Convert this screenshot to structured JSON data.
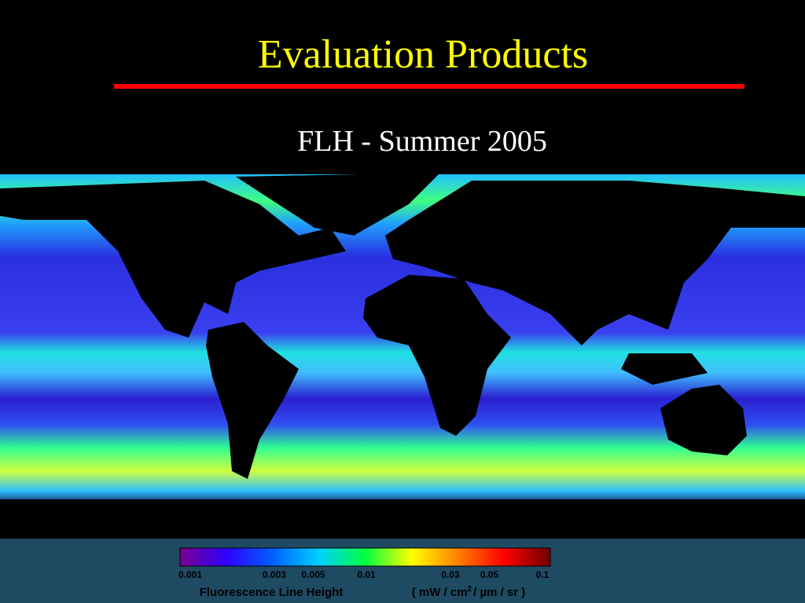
{
  "slide": {
    "title": "Evaluation Products",
    "subtitle": "FLH - Summer 2005",
    "colorbar": {
      "scale": "log",
      "lim": [
        0.001,
        0.1
      ],
      "ticks": [
        0.001,
        0.003,
        0.005,
        0.01,
        0.03,
        0.05,
        0.1
      ],
      "colors": [
        "#7a0090",
        "#3000ff",
        "#0060ff",
        "#00d0ff",
        "#00ff40",
        "#ffff00",
        "#ff8000",
        "#ff0000",
        "#700000"
      ],
      "label": "Fluorescence Line Height",
      "units": {
        "before": "( mW / cm",
        "sup": "2",
        "after": "/ µm / sr )"
      }
    }
  }
}
